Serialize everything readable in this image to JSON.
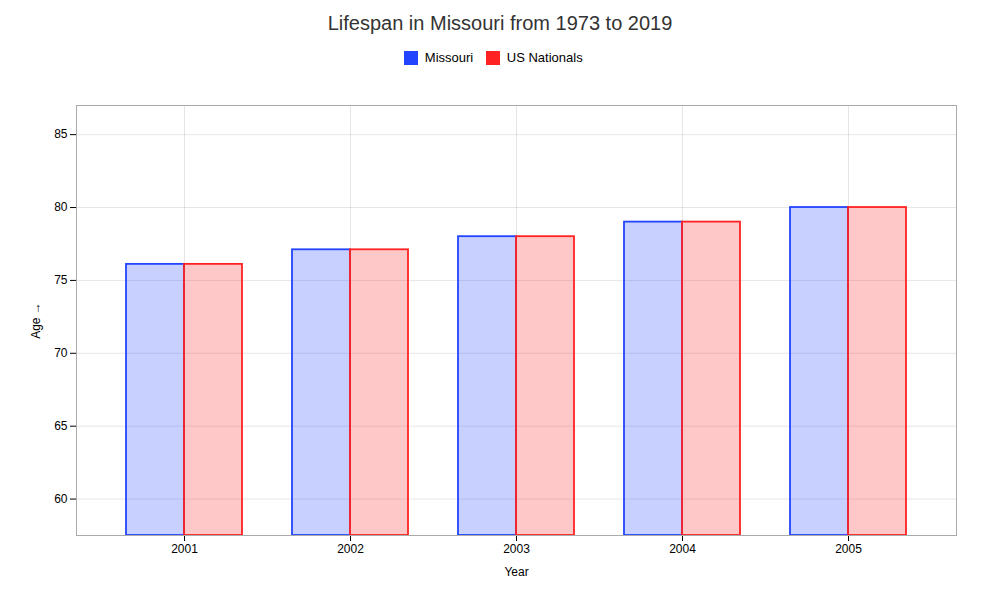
{
  "chart_data": {
    "type": "bar",
    "title": "Lifespan in Missouri from 1973 to 2019",
    "xlabel": "Year",
    "ylabel": "Age",
    "categories": [
      "2001",
      "2002",
      "2003",
      "2004",
      "2005"
    ],
    "series": [
      {
        "name": "Missouri",
        "color": "#2244ff",
        "values": [
          76.1,
          77.1,
          78.0,
          79.0,
          80.0
        ]
      },
      {
        "name": "US Nationals",
        "color": "#ff2222",
        "values": [
          76.1,
          77.1,
          78.0,
          79.0,
          80.0
        ]
      }
    ],
    "ylim": [
      57.5,
      87
    ],
    "yticks": [
      60,
      65,
      70,
      75,
      80,
      85
    ],
    "grid": true,
    "legend": "top"
  }
}
